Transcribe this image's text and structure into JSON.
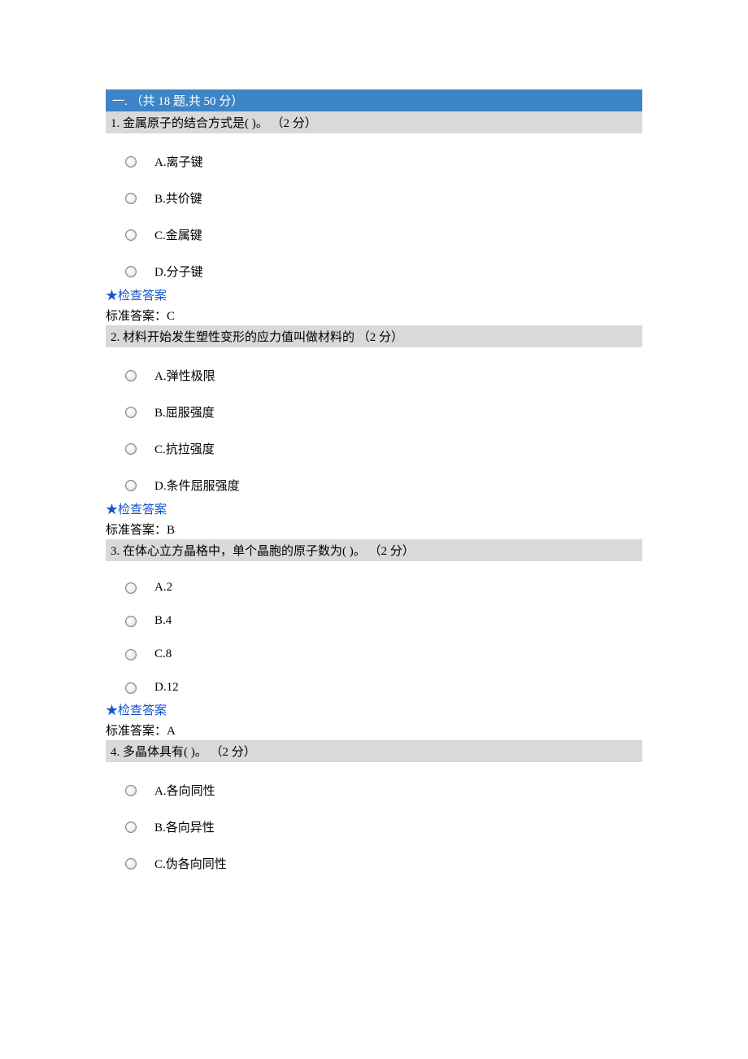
{
  "colors": {
    "section_header_bg": "#3d85c6",
    "section_header_text": "#ffffff",
    "question_stem_bg": "#d9d9d9",
    "link_color": "#1155cc",
    "body_text": "#000000",
    "page_bg": "#ffffff"
  },
  "section": {
    "title": "一.  （共 18 题,共 50 分）"
  },
  "check_answer_label": "★检查答案",
  "questions": [
    {
      "stem": "1. 金属原子的结合方式是( )。 （2 分）",
      "options": [
        "A.离子键",
        "B.共价键",
        "C.金属键",
        "D.分子键"
      ],
      "std_answer": "标准答案：C"
    },
    {
      "stem": "2. 材料开始发生塑性变形的应力值叫做材料的 （2 分）",
      "options": [
        "A.弹性极限",
        "B.屈服强度",
        "C.抗拉强度",
        "D.条件屈服强度"
      ],
      "std_answer": "标准答案：B"
    },
    {
      "stem": "3. 在体心立方晶格中，单个晶胞的原子数为( )。 （2 分）",
      "options": [
        "A.2",
        "B.4",
        "C.8",
        "D.12"
      ],
      "std_answer": "标准答案：A"
    },
    {
      "stem": "4. 多晶体具有( )。 （2 分）",
      "options": [
        "A.各向同性",
        "B.各向异性",
        "C.伪各向同性"
      ],
      "std_answer": ""
    }
  ]
}
